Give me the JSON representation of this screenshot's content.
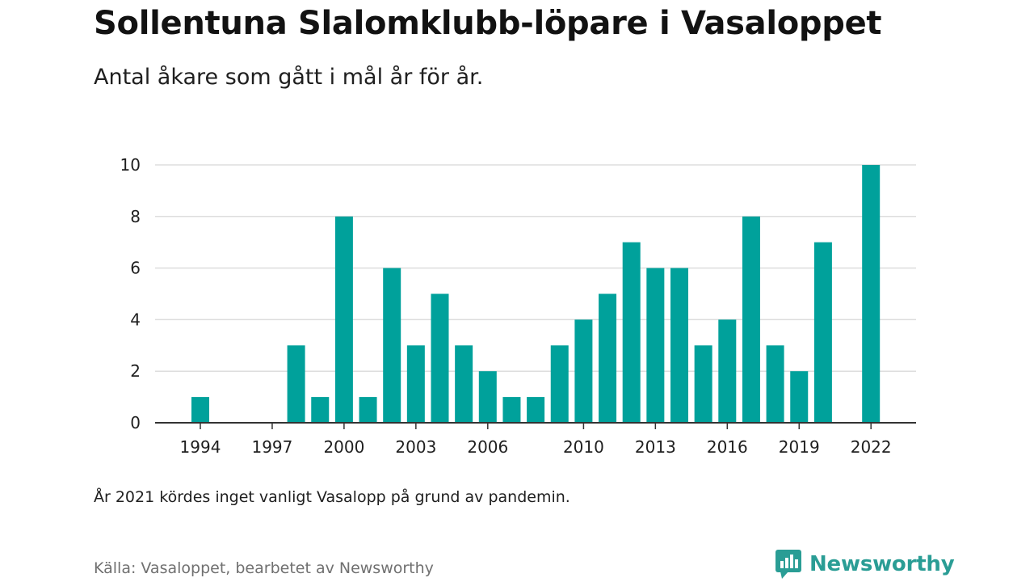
{
  "header": {
    "title": "Sollentuna Slalomklubb-löpare i Vasaloppet",
    "subtitle": "Antal åkare som gått i mål år för år."
  },
  "footer": {
    "note": "År 2021 kördes inget vanligt Vasalopp på grund av pandemin.",
    "source": "Källa: Vasaloppet, bearbetet av Newsworthy",
    "brand": "Newsworthy"
  },
  "colors": {
    "bar": "#00a19b",
    "grid": "#dddddd",
    "axis": "#333333",
    "brand": "#2a9d95"
  },
  "icons": {
    "logo": "newsworthy-logo-icon"
  },
  "chart_data": {
    "type": "bar",
    "title": "Sollentuna Slalomklubb-löpare i Vasaloppet",
    "subtitle": "Antal åkare som gått i mål år för år.",
    "categories": [
      1994,
      1995,
      1996,
      1997,
      1998,
      1999,
      2000,
      2001,
      2002,
      2003,
      2004,
      2005,
      2006,
      2007,
      2008,
      2009,
      2010,
      2011,
      2012,
      2013,
      2014,
      2015,
      2016,
      2017,
      2018,
      2019,
      2020,
      2021,
      2022
    ],
    "values": [
      1,
      0,
      0,
      0,
      3,
      1,
      8,
      1,
      6,
      3,
      5,
      3,
      2,
      1,
      1,
      3,
      4,
      5,
      7,
      6,
      6,
      3,
      4,
      8,
      3,
      2,
      7,
      0,
      10
    ],
    "x_tick_labels": [
      "1994",
      "1997",
      "2000",
      "2003",
      "2006",
      "2010",
      "2013",
      "2016",
      "2019",
      "2022"
    ],
    "y_ticks": [
      0,
      2,
      4,
      6,
      8,
      10
    ],
    "ylim": [
      0,
      10
    ],
    "xlabel": "",
    "ylabel": "",
    "grid": true,
    "legend": "none"
  }
}
